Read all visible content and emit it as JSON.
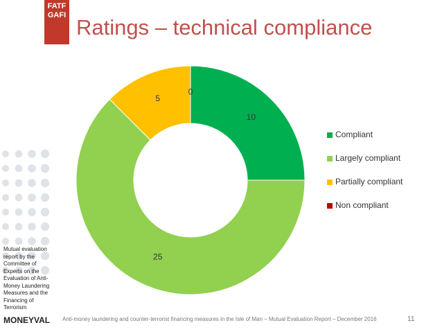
{
  "chart_data": {
    "type": "donut",
    "title": "Ratings – technical compliance",
    "categories": [
      "Compliant",
      "Largely compliant",
      "Partially compliant",
      "Non compliant"
    ],
    "values": [
      10,
      25,
      5,
      0
    ],
    "colors": [
      "#00b050",
      "#92d050",
      "#ffc000",
      "#c00000"
    ],
    "legend": "right"
  },
  "slide": {
    "logo": "FATF GAFI",
    "side_note": "Mutual evaluation report by the Committee of Experts on the Evaluation of Anti-Money Laundering Measures and the Financing of Terrorism",
    "organization": "MONEYVAL",
    "footer": "Anti-money laundering and counter-terrorist financing measures in the Isle of Man – Mutual Evaluation Report – December 2016",
    "page": "11"
  }
}
